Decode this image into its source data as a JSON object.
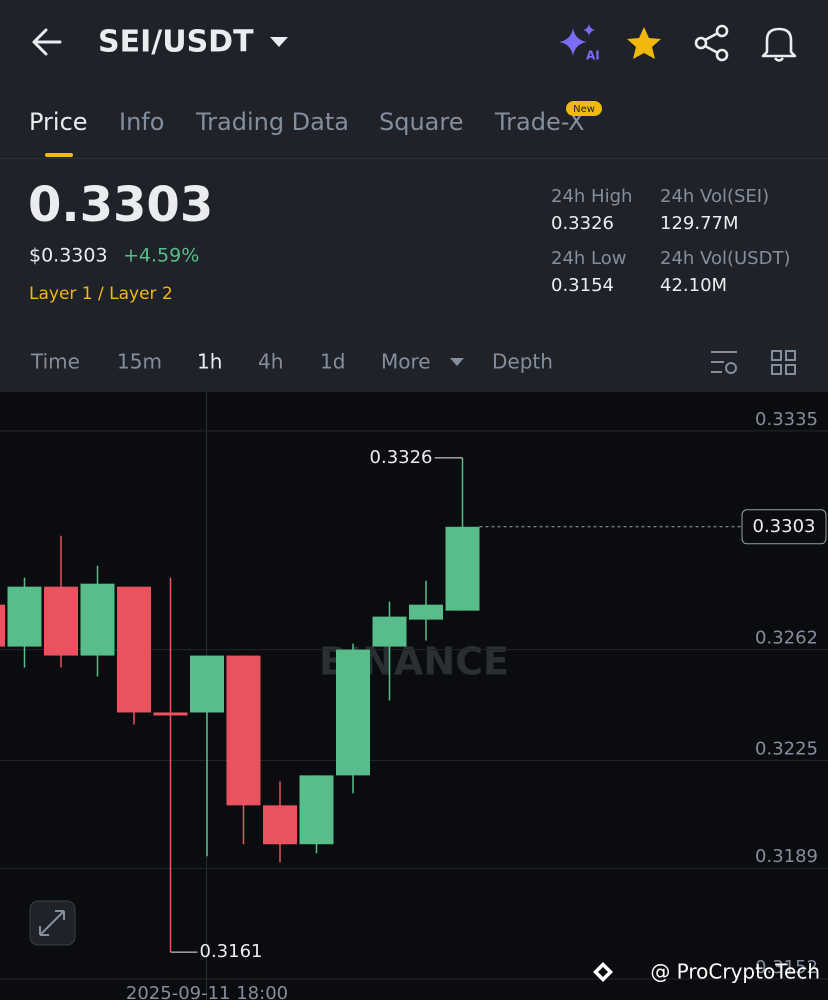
{
  "header": {
    "pair": "SEI/USDT"
  },
  "tabs": [
    "Price",
    "Info",
    "Trading Data",
    "Square",
    "Trade-X"
  ],
  "new_badge": "New",
  "price": {
    "last": "0.3303",
    "usd": "$0.3303",
    "change": "+4.59%",
    "sector": "Layer 1 / Layer 2"
  },
  "stats": [
    {
      "label": "24h High",
      "value": "0.3326"
    },
    {
      "label": "24h Vol(SEI)",
      "value": "129.77M"
    },
    {
      "label": "24h Low",
      "value": "0.3154"
    },
    {
      "label": "24h Vol(USDT)",
      "value": "42.10M"
    }
  ],
  "intervals": [
    "Time",
    "15m",
    "1h",
    "4h",
    "1d",
    "More",
    "Depth"
  ],
  "chart_data": {
    "type": "candlestick",
    "categories": [
      null,
      null,
      null,
      null,
      null,
      null,
      "2025-09-11 18:00",
      null,
      null,
      null,
      null,
      null,
      null,
      null
    ],
    "open": [
      0.3277,
      0.3263,
      0.3283,
      0.326,
      0.3283,
      0.3241,
      0.3241,
      0.326,
      0.321,
      0.3197,
      0.322,
      0.3263,
      0.3272,
      0.3275
    ],
    "high": [
      0.3279,
      0.3286,
      0.33,
      0.329,
      0.3283,
      0.3286,
      0.326,
      0.326,
      0.3218,
      0.322,
      0.3264,
      0.3278,
      0.3285,
      0.3326
    ],
    "low": [
      0.3262,
      0.3256,
      0.3256,
      0.3253,
      0.3237,
      0.3161,
      0.3193,
      0.3197,
      0.3191,
      0.3194,
      0.3214,
      0.3245,
      0.3265,
      0.3275
    ],
    "close": [
      0.3263,
      0.3283,
      0.326,
      0.3284,
      0.3241,
      0.324,
      0.326,
      0.321,
      0.3197,
      0.322,
      0.3262,
      0.3273,
      0.3277,
      0.3303
    ],
    "up_color": "#58bd8a",
    "down_color": "#e8535f",
    "ylim": [
      0.3145,
      0.3348
    ],
    "yticks": [
      0.3335,
      0.3262,
      0.3225,
      0.3189,
      0.3152
    ],
    "grid": true,
    "watermark": "BINANCE"
  },
  "credit": "@ ProCryptoTech"
}
